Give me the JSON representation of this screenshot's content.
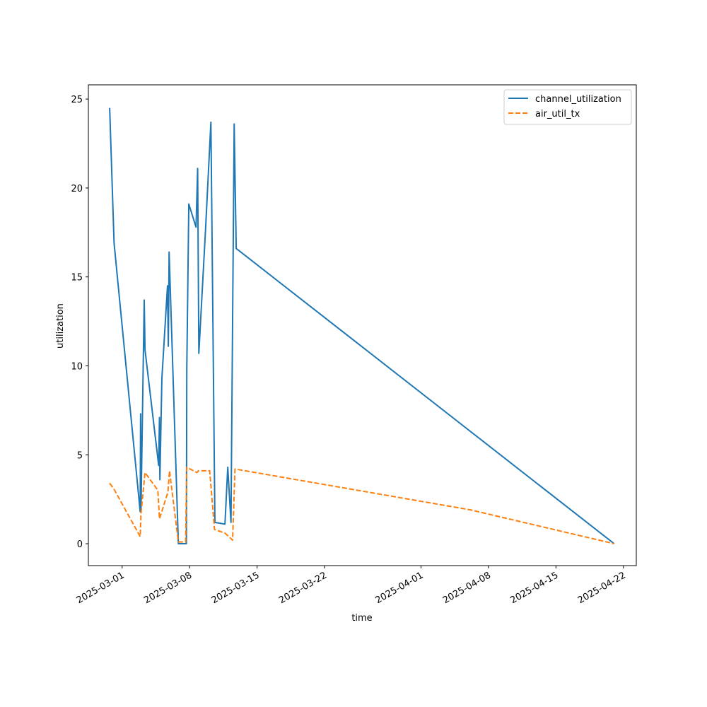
{
  "chart_data": {
    "type": "line",
    "title": "",
    "xlabel": "time",
    "ylabel": "utilization",
    "xlim": [
      "2025-02-25T12:00",
      "2025-04-23T08:00"
    ],
    "ylim": [
      -1.23,
      25.8
    ],
    "grid": false,
    "legend_position": "top-right",
    "x_ticks": [
      "2025-03-01",
      "2025-03-08",
      "2025-03-15",
      "2025-03-22",
      "2025-04-01",
      "2025-04-08",
      "2025-04-15",
      "2025-04-22"
    ],
    "y_ticks": [
      0,
      5,
      10,
      15,
      20,
      25
    ],
    "series": [
      {
        "name": "channel_utilization",
        "color": "#1f77b4",
        "dash": "solid",
        "points": [
          [
            "2025-02-27T17:00",
            24.5
          ],
          [
            "2025-02-28T04:00",
            16.9
          ],
          [
            "2025-03-02T21:00",
            1.8
          ],
          [
            "2025-03-02T22:00",
            7.3
          ],
          [
            "2025-03-02T23:00",
            1.9
          ],
          [
            "2025-03-03T07:00",
            13.7
          ],
          [
            "2025-03-03T09:00",
            10.9
          ],
          [
            "2025-03-04T19:00",
            4.4
          ],
          [
            "2025-03-04T21:00",
            7.1
          ],
          [
            "2025-03-04T22:00",
            3.6
          ],
          [
            "2025-03-05T03:00",
            9.3
          ],
          [
            "2025-03-05T17:00",
            14.5
          ],
          [
            "2025-03-05T19:00",
            11.1
          ],
          [
            "2025-03-05T21:00",
            16.4
          ],
          [
            "2025-03-06T20:00",
            0.0
          ],
          [
            "2025-03-07T16:00",
            0.0
          ],
          [
            "2025-03-07T17:00",
            9.8
          ],
          [
            "2025-03-07T22:00",
            19.1
          ],
          [
            "2025-03-08T16:00",
            17.8
          ],
          [
            "2025-03-08T20:00",
            21.1
          ],
          [
            "2025-03-08T23:00",
            10.7
          ],
          [
            "2025-03-09T16:00",
            17.8
          ],
          [
            "2025-03-10T05:00",
            23.7
          ],
          [
            "2025-03-10T15:00",
            1.2
          ],
          [
            "2025-03-11T16:00",
            1.1
          ],
          [
            "2025-03-11T23:00",
            4.3
          ],
          [
            "2025-03-12T07:00",
            1.2
          ],
          [
            "2025-03-12T15:00",
            23.6
          ],
          [
            "2025-03-12T20:00",
            16.6
          ],
          [
            "2025-04-21T01:00",
            0.0
          ]
        ]
      },
      {
        "name": "air_util_tx",
        "color": "#ff7f0e",
        "dash": "dashed",
        "points": [
          [
            "2025-02-27T17:00",
            3.4
          ],
          [
            "2025-02-28T03:00",
            3.1
          ],
          [
            "2025-03-02T21:00",
            0.4
          ],
          [
            "2025-03-02T23:00",
            1.7
          ],
          [
            "2025-03-03T09:00",
            4.0
          ],
          [
            "2025-03-04T17:00",
            3.0
          ],
          [
            "2025-03-04T21:00",
            1.4
          ],
          [
            "2025-03-05T18:00",
            2.9
          ],
          [
            "2025-03-05T22:00",
            4.1
          ],
          [
            "2025-03-06T20:00",
            0.1
          ],
          [
            "2025-03-07T14:00",
            0.1
          ],
          [
            "2025-03-07T17:00",
            4.3
          ],
          [
            "2025-03-08T18:00",
            4.0
          ],
          [
            "2025-03-08T22:00",
            4.1
          ],
          [
            "2025-03-10T02:00",
            4.1
          ],
          [
            "2025-03-10T14:00",
            0.8
          ],
          [
            "2025-03-11T16:00",
            0.6
          ],
          [
            "2025-03-12T11:00",
            0.2
          ],
          [
            "2025-03-12T17:00",
            4.2
          ],
          [
            "2025-04-06T04:00",
            1.9
          ],
          [
            "2025-04-21T01:00",
            0.0
          ]
        ]
      }
    ]
  }
}
